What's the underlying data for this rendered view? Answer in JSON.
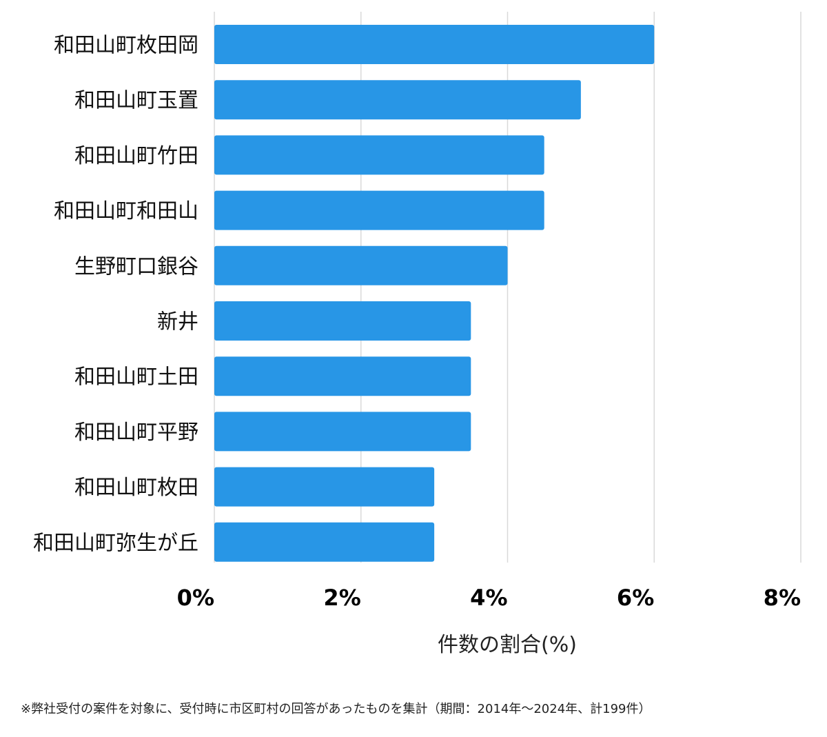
{
  "chart_data": {
    "type": "bar",
    "orientation": "horizontal",
    "categories": [
      "和田山町枚田岡",
      "和田山町玉置",
      "和田山町竹田",
      "和田山町和田山",
      "生野町口銀谷",
      "新井",
      "和田山町土田",
      "和田山町平野",
      "和田山町枚田",
      "和田山町弥生が丘"
    ],
    "values": [
      6.0,
      5.0,
      4.5,
      4.5,
      4.0,
      3.5,
      3.5,
      3.5,
      3.0,
      3.0
    ],
    "xlim": [
      0,
      8
    ],
    "xticks": [
      "0%",
      "2%",
      "4%",
      "6%",
      "8%"
    ],
    "xlabel": "件数の割合(%)",
    "grid": "vertical",
    "bar_color": "#2896e6"
  },
  "footnote": "※弊社受付の案件を対象に、受付時に市区町村の回答があったものを集計（期間：2014年〜2024年、計199件）"
}
